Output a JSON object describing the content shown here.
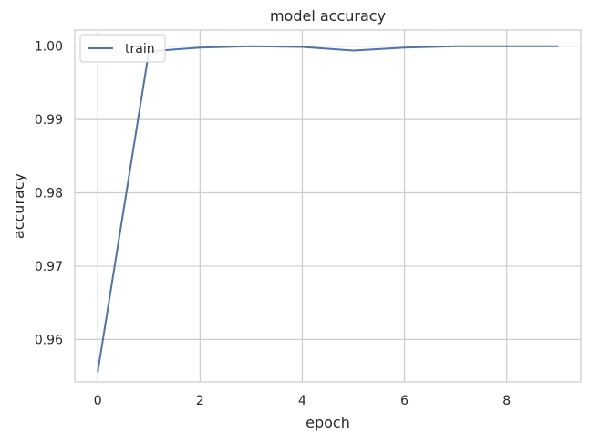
{
  "chart_data": {
    "type": "line",
    "title": "model accuracy",
    "xlabel": "epoch",
    "ylabel": "accuracy",
    "xlim": [
      -0.45,
      9.45
    ],
    "ylim": [
      0.9542,
      1.0022
    ],
    "x_ticks": [
      0,
      2,
      4,
      6,
      8
    ],
    "y_ticks": [
      0.96,
      0.97,
      0.98,
      0.99,
      1.0
    ],
    "y_tick_labels": [
      "0.96",
      "0.97",
      "0.98",
      "0.99",
      "1.00"
    ],
    "grid": true,
    "legend_position": "upper left",
    "series": [
      {
        "name": "train",
        "color": "#4c72b0",
        "x": [
          0,
          1,
          2,
          3,
          4,
          5,
          6,
          7,
          8,
          9
        ],
        "y": [
          0.9556,
          0.9993,
          0.9998,
          1.0,
          0.9999,
          0.9994,
          0.9998,
          1.0,
          1.0,
          1.0
        ]
      }
    ]
  },
  "colors": {
    "line": "#4c72b0",
    "grid": "#cccccc",
    "spine": "#cccccc",
    "text": "#262626"
  }
}
